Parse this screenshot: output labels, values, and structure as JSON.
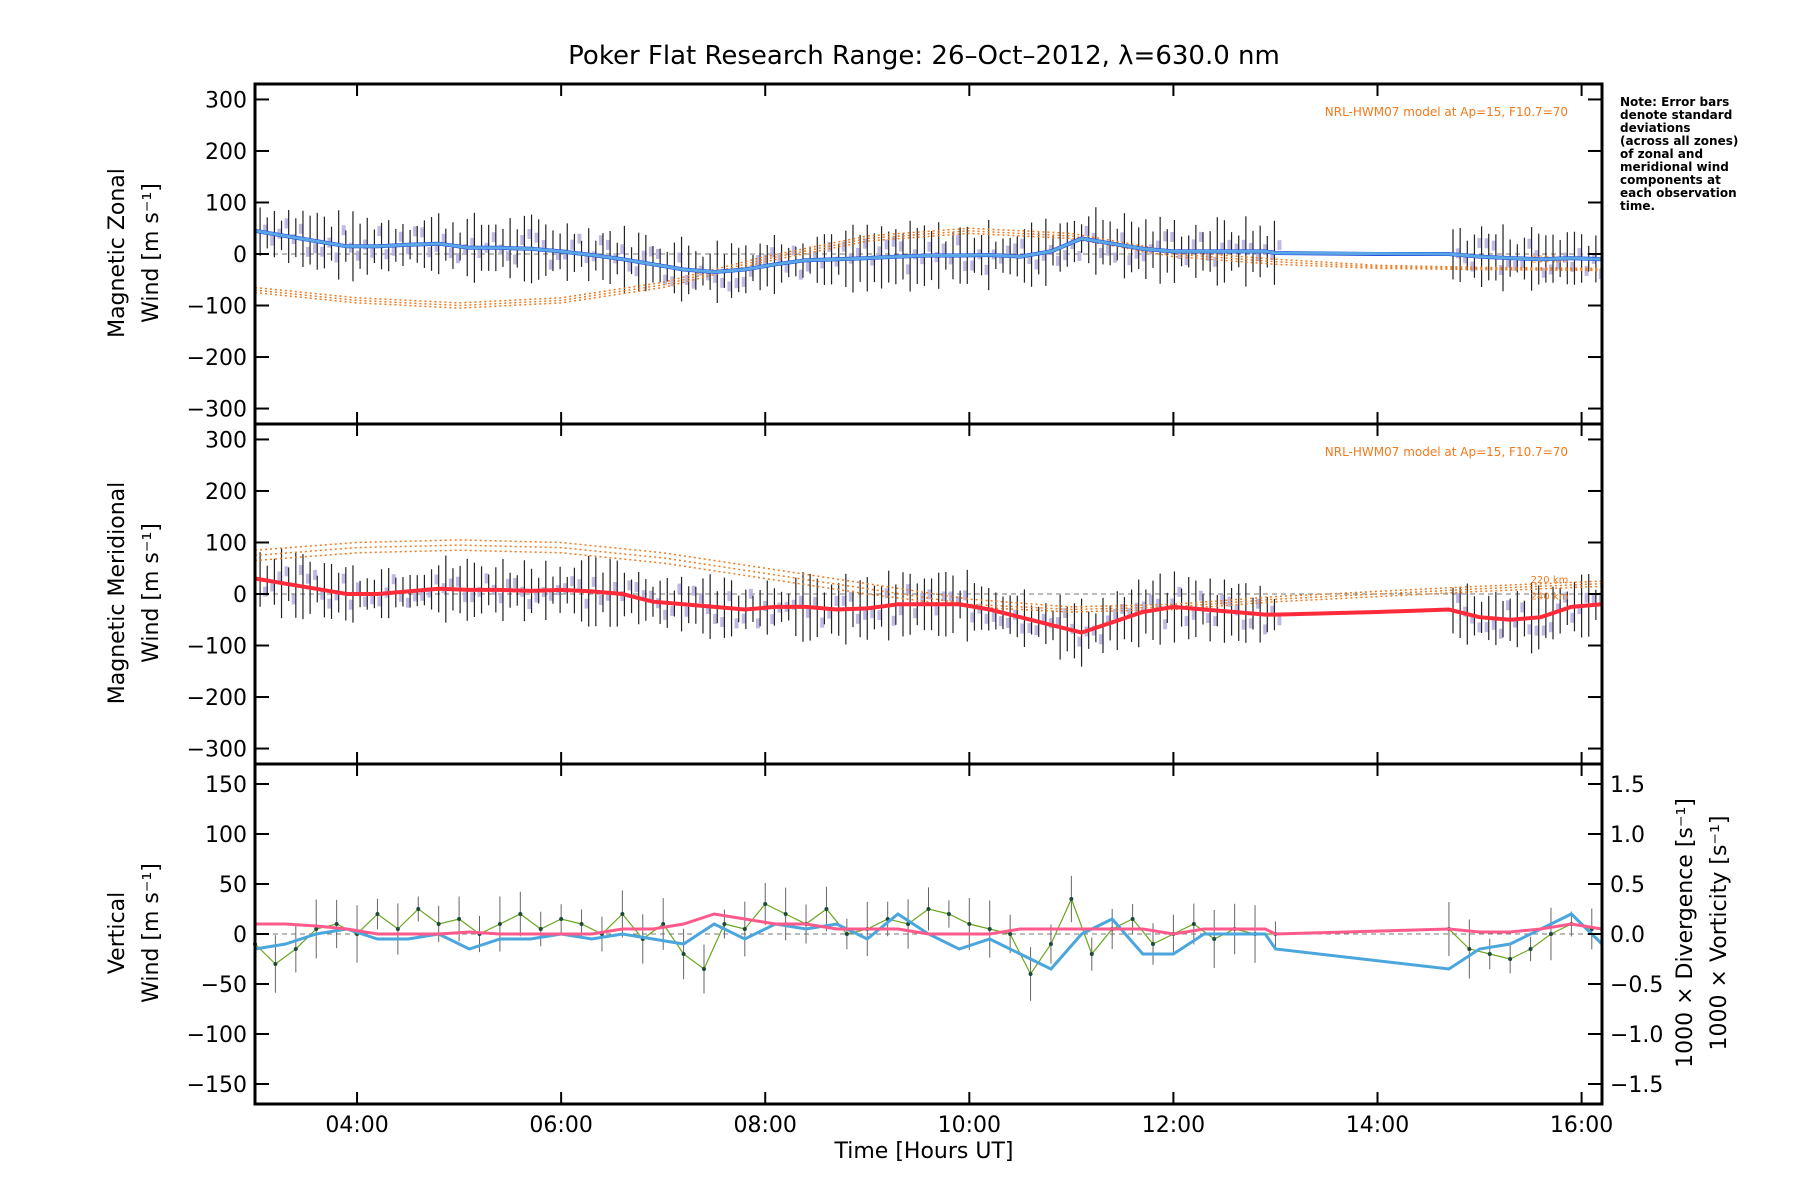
{
  "colors": {
    "zonal_mean": "#1f3fe0",
    "meridional_mean": "#ff2a3a",
    "fit_mean": "#5fb4e6",
    "vertical": "#6aa61e",
    "divergence": "#4aa6dc",
    "vorticity": "#ff5a8c",
    "model": "#f07a1e",
    "obs_bars": "#b4aee0",
    "error_bars": "#222222"
  },
  "chart_data": {
    "title": "Poker Flat Research Range: 26–Oct–2012, λ=630.0 nm",
    "note": [
      "Note: Error bars",
      "denote standard",
      "deviations",
      "(across all zones)",
      "of zonal and",
      "meridional wind",
      "components at",
      "each observation",
      "time."
    ],
    "xlabel": "Time [Hours UT]",
    "x_tick_labels": [
      "04:00",
      "06:00",
      "08:00",
      "10:00",
      "12:00",
      "14:00",
      "16:00"
    ],
    "x_ticks": [
      4,
      6,
      8,
      10,
      12,
      14,
      16
    ],
    "xlim": [
      3.0,
      16.2
    ],
    "panels": [
      {
        "id": "zonal",
        "type": "line",
        "ylabel_line1": "Magnetic Zonal",
        "ylabel_line2": "Wind [m s⁻¹]",
        "ylim": [
          -330,
          330
        ],
        "y_ticks": [
          -300,
          -200,
          -100,
          0,
          100,
          200,
          300
        ],
        "y_tick_labels": [
          "−300",
          "−200",
          "−100",
          "0",
          "100",
          "200",
          "300"
        ],
        "model_note": "NRL-HWM07 model at Ap=15, F10.7=70",
        "model_labels": [
          "260 km"
        ],
        "mean_wind": {
          "x": [
            3.0,
            3.3,
            3.6,
            3.9,
            4.2,
            4.5,
            4.8,
            5.1,
            5.4,
            5.7,
            6.0,
            6.3,
            6.6,
            6.9,
            7.2,
            7.5,
            7.8,
            8.1,
            8.4,
            8.7,
            9.0,
            9.3,
            9.6,
            9.9,
            10.2,
            10.5,
            10.8,
            11.1,
            11.4,
            11.7,
            12.0,
            12.3,
            12.6,
            12.9,
            13.0,
            14.0,
            14.7,
            15.0,
            15.3,
            15.6,
            15.9,
            16.2
          ],
          "y": [
            45,
            35,
            25,
            15,
            15,
            18,
            20,
            12,
            12,
            10,
            5,
            -2,
            -10,
            -20,
            -30,
            -35,
            -30,
            -20,
            -12,
            -10,
            -8,
            -5,
            -3,
            -3,
            -2,
            -5,
            5,
            30,
            20,
            10,
            5,
            5,
            5,
            5,
            2,
            0,
            0,
            -5,
            -8,
            -10,
            -8,
            -10
          ]
        },
        "model_curves": [
          {
            "x": [
              3.0,
              4.0,
              5.0,
              6.0,
              7.0,
              8.0,
              9.0,
              10.0,
              11.0,
              12.0,
              13.0,
              14.0,
              15.0,
              16.2
            ],
            "y": [
              -70,
              -90,
              -100,
              -90,
              -60,
              -10,
              30,
              45,
              35,
              0,
              -15,
              -25,
              -28,
              -30
            ]
          },
          {
            "x": [
              3.0,
              4.0,
              5.0,
              6.0,
              7.0,
              8.0,
              9.0,
              10.0,
              11.0,
              12.0,
              13.0,
              14.0,
              15.0,
              16.2
            ],
            "y": [
              -75,
              -95,
              -105,
              -95,
              -65,
              -15,
              25,
              40,
              30,
              -5,
              -20,
              -28,
              -30,
              -32
            ]
          },
          {
            "x": [
              3.0,
              4.0,
              5.0,
              6.0,
              7.0,
              8.0,
              9.0,
              10.0,
              11.0,
              12.0,
              13.0,
              14.0,
              15.0,
              16.2
            ],
            "y": [
              -65,
              -85,
              -95,
              -85,
              -55,
              -5,
              35,
              50,
              40,
              5,
              -10,
              -22,
              -26,
              -28
            ]
          }
        ]
      },
      {
        "id": "meridional",
        "type": "line",
        "ylabel_line1": "Magnetic Meridional",
        "ylabel_line2": "Wind [m s⁻¹]",
        "ylim": [
          -330,
          330
        ],
        "y_ticks": [
          -300,
          -200,
          -100,
          0,
          100,
          200,
          300
        ],
        "y_tick_labels": [
          "−300",
          "−200",
          "−100",
          "0",
          "100",
          "200",
          "300"
        ],
        "model_note": "NRL-HWM07 model at Ap=15, F10.7=70",
        "model_labels": [
          "220 km",
          "240 km"
        ],
        "mean_wind": {
          "x": [
            3.0,
            3.3,
            3.6,
            3.9,
            4.2,
            4.5,
            4.8,
            5.1,
            5.4,
            5.7,
            6.0,
            6.3,
            6.6,
            6.9,
            7.2,
            7.5,
            7.8,
            8.1,
            8.4,
            8.7,
            9.0,
            9.3,
            9.6,
            9.9,
            10.2,
            10.5,
            10.8,
            11.1,
            11.4,
            11.7,
            12.0,
            12.3,
            12.6,
            12.9,
            13.0,
            14.0,
            14.7,
            15.0,
            15.3,
            15.6,
            15.9,
            16.2
          ],
          "y": [
            30,
            20,
            10,
            0,
            0,
            5,
            10,
            8,
            8,
            6,
            8,
            5,
            0,
            -15,
            -20,
            -25,
            -30,
            -25,
            -25,
            -30,
            -28,
            -20,
            -20,
            -20,
            -30,
            -45,
            -60,
            -75,
            -55,
            -35,
            -25,
            -30,
            -35,
            -40,
            -40,
            -35,
            -30,
            -45,
            -50,
            -45,
            -25,
            -20
          ]
        },
        "model_curves": [
          {
            "x": [
              3.0,
              4.0,
              5.0,
              6.0,
              7.0,
              8.0,
              9.0,
              10.0,
              11.0,
              12.0,
              13.0,
              14.0,
              15.0,
              16.2
            ],
            "y": [
              75,
              90,
              95,
              90,
              70,
              40,
              10,
              -20,
              -30,
              -25,
              -10,
              0,
              10,
              20
            ]
          },
          {
            "x": [
              3.0,
              4.0,
              5.0,
              6.0,
              7.0,
              8.0,
              9.0,
              10.0,
              11.0,
              12.0,
              13.0,
              14.0,
              15.0,
              16.2
            ],
            "y": [
              65,
              80,
              85,
              80,
              60,
              30,
              0,
              -25,
              -35,
              -30,
              -15,
              -5,
              5,
              15
            ]
          },
          {
            "x": [
              3.0,
              4.0,
              5.0,
              6.0,
              7.0,
              8.0,
              9.0,
              10.0,
              11.0,
              12.0,
              13.0,
              14.0,
              15.0,
              16.2
            ],
            "y": [
              85,
              100,
              105,
              100,
              80,
              50,
              20,
              -10,
              -25,
              -20,
              -5,
              5,
              15,
              25
            ]
          }
        ]
      },
      {
        "id": "vertical",
        "type": "line",
        "ylabel_line1": "Vertical",
        "ylabel_line2": "Wind [m s⁻¹]",
        "right_label1": "1000 × Divergence [s⁻¹]",
        "right_label2": "1000 × Vorticity [s⁻¹]",
        "ylim": [
          -170,
          170
        ],
        "y_ticks": [
          -150,
          -100,
          -50,
          0,
          50,
          100,
          150
        ],
        "y_tick_labels": [
          "−150",
          "−100",
          "−50",
          "0",
          "50",
          "100",
          "150"
        ],
        "y2lim": [
          -1.7,
          1.7
        ],
        "y2_ticks": [
          -1.5,
          -1.0,
          -0.5,
          0.0,
          0.5,
          1.0,
          1.5
        ],
        "y2_tick_labels": [
          "−1.5",
          "−1.0",
          "−0.5",
          "0.0",
          "0.5",
          "1.0",
          "1.5"
        ],
        "vertical_wind": {
          "x": [
            3.0,
            3.2,
            3.4,
            3.6,
            3.8,
            4.0,
            4.2,
            4.4,
            4.6,
            4.8,
            5.0,
            5.2,
            5.4,
            5.6,
            5.8,
            6.0,
            6.2,
            6.4,
            6.6,
            6.8,
            7.0,
            7.2,
            7.4,
            7.6,
            7.8,
            8.0,
            8.2,
            8.4,
            8.6,
            8.8,
            9.0,
            9.2,
            9.4,
            9.6,
            9.8,
            10.0,
            10.2,
            10.4,
            10.6,
            10.8,
            11.0,
            11.2,
            11.4,
            11.6,
            11.8,
            12.0,
            12.2,
            12.4,
            12.6,
            12.8,
            13.0,
            14.7,
            14.9,
            15.1,
            15.3,
            15.5,
            15.7,
            15.9,
            16.1
          ],
          "y": [
            -10,
            -30,
            -15,
            5,
            10,
            0,
            20,
            5,
            25,
            10,
            15,
            0,
            10,
            20,
            5,
            15,
            10,
            0,
            20,
            -5,
            10,
            -20,
            -35,
            10,
            5,
            30,
            20,
            10,
            25,
            0,
            5,
            15,
            10,
            25,
            20,
            10,
            5,
            0,
            -40,
            -10,
            35,
            -20,
            5,
            15,
            -10,
            0,
            10,
            -5,
            5,
            0,
            0,
            5,
            -15,
            -20,
            -25,
            -15,
            0,
            10,
            5
          ]
        },
        "divergence": {
          "x": [
            3.0,
            3.3,
            3.6,
            3.9,
            4.2,
            4.5,
            4.8,
            5.1,
            5.4,
            5.7,
            6.0,
            6.3,
            6.6,
            6.9,
            7.2,
            7.5,
            7.8,
            8.1,
            8.4,
            8.7,
            9.0,
            9.3,
            9.6,
            9.9,
            10.2,
            10.5,
            10.8,
            11.1,
            11.4,
            11.7,
            12.0,
            12.3,
            12.6,
            12.9,
            13.0,
            14.7,
            15.0,
            15.3,
            15.6,
            15.9,
            16.2
          ],
          "y": [
            -0.15,
            -0.1,
            0.0,
            0.05,
            -0.05,
            -0.05,
            0.0,
            -0.15,
            -0.05,
            -0.05,
            0.0,
            -0.05,
            0.0,
            -0.05,
            -0.1,
            0.1,
            -0.05,
            0.1,
            0.05,
            0.1,
            -0.05,
            0.2,
            0.0,
            -0.15,
            -0.05,
            -0.2,
            -0.35,
            0.0,
            0.15,
            -0.2,
            -0.2,
            0.0,
            0.0,
            0.0,
            -0.15,
            -0.35,
            -0.15,
            -0.1,
            0.05,
            0.2,
            -0.1
          ]
        },
        "vorticity": {
          "x": [
            3.0,
            3.3,
            3.6,
            3.9,
            4.2,
            4.5,
            4.8,
            5.1,
            5.4,
            5.7,
            6.0,
            6.3,
            6.6,
            6.9,
            7.2,
            7.5,
            7.8,
            8.1,
            8.4,
            8.7,
            9.0,
            9.3,
            9.6,
            9.9,
            10.2,
            10.5,
            10.8,
            11.1,
            11.4,
            11.7,
            12.0,
            12.3,
            12.6,
            12.9,
            13.0,
            14.7,
            15.0,
            15.3,
            15.6,
            15.9,
            16.2
          ],
          "y": [
            0.1,
            0.1,
            0.08,
            0.05,
            0.0,
            0.0,
            0.0,
            0.02,
            0.0,
            0.0,
            0.0,
            0.0,
            0.05,
            0.05,
            0.1,
            0.2,
            0.15,
            0.1,
            0.1,
            0.05,
            0.05,
            0.05,
            0.0,
            0.0,
            0.0,
            0.05,
            0.05,
            0.05,
            0.05,
            0.05,
            0.0,
            0.05,
            0.05,
            0.05,
            0.0,
            0.05,
            0.02,
            0.02,
            0.05,
            0.1,
            0.05
          ]
        }
      }
    ]
  }
}
